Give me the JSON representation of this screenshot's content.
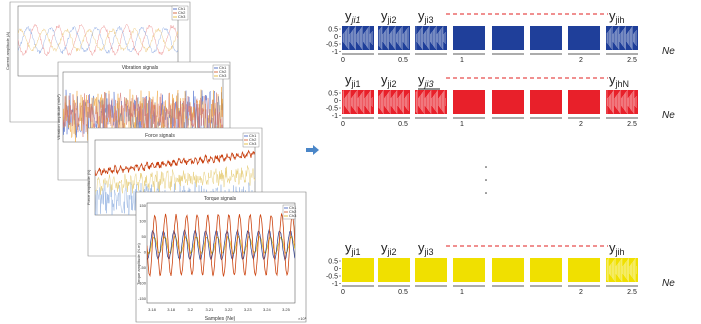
{
  "left_stack": {
    "plots": [
      {
        "title": "",
        "ylabel": "Current amplitude (A)",
        "legend": [
          "Ch1",
          "Ch2",
          "Ch3"
        ]
      },
      {
        "title": "Vibration signals",
        "ylabel": "Vibration amplitude (m/s²)",
        "legend": [
          "Ch1",
          "Ch2",
          "Ch3"
        ]
      },
      {
        "title": "Force signals",
        "ylabel": "Force amplitude (N)",
        "legend": [
          "Ch1",
          "Ch2",
          "Ch3"
        ]
      },
      {
        "title": "Torque signals",
        "ylabel": "Torque amplitude (N.m)",
        "xlabel": "Samples (Ne)",
        "xexp": "×10⁵",
        "legend": [
          "Ch1",
          "Ch2",
          "Ch3"
        ]
      }
    ],
    "torque_xticks": [
      "3.18",
      "3.18",
      "3.2",
      "3.21",
      "3.22",
      "3.23",
      "3.24",
      "3.25"
    ],
    "torque_yticks": [
      "150",
      "100",
      "50",
      "0",
      "-50",
      "-100",
      "-150"
    ]
  },
  "arrow": {
    "color": "#4a86c8"
  },
  "rows": [
    {
      "name": "blue",
      "color": "#1f3f9a",
      "dense_indices": [
        0,
        1,
        2,
        7
      ],
      "labels": [
        {
          "base": "y",
          "sub": "ji1",
          "italic": true,
          "slot": 0
        },
        {
          "base": "y",
          "sub": "ji2",
          "italic": false,
          "slot": 1
        },
        {
          "base": "y",
          "sub": "ji3",
          "italic": false,
          "slot": 2
        },
        {
          "base": "y",
          "sub": "jih",
          "italic": false,
          "slot": 7
        }
      ]
    },
    {
      "name": "red",
      "color": "#e8202a",
      "dense_indices": [
        0,
        1,
        2,
        7
      ],
      "labels": [
        {
          "base": "y",
          "sub": "ji1",
          "italic": false,
          "slot": 0
        },
        {
          "base": "y",
          "sub": "ji2",
          "italic": false,
          "slot": 1
        },
        {
          "base": "y",
          "sub": "ji3",
          "italic": true,
          "slot": 2,
          "underline": true
        },
        {
          "base": "y",
          "sub": "jhN",
          "italic": false,
          "slot": 7
        }
      ]
    },
    {
      "name": "yellow",
      "color": "#f0e000",
      "dense_indices": [
        7
      ],
      "labels": [
        {
          "base": "y",
          "sub": "ji1",
          "italic": false,
          "slot": 0
        },
        {
          "base": "y",
          "sub": "ji2",
          "italic": false,
          "slot": 1
        },
        {
          "base": "y",
          "sub": "ji3",
          "italic": false,
          "slot": 2
        },
        {
          "base": "y",
          "sub": "jih",
          "italic": false,
          "slot": 7
        }
      ]
    }
  ],
  "yticks": [
    "0.5",
    "0",
    "-0.5",
    "-1"
  ],
  "xticks": [
    "0",
    "0.5",
    "1",
    "2",
    "2.5"
  ],
  "xaxis_label": "Ne",
  "dashes_color": "#e02020"
}
